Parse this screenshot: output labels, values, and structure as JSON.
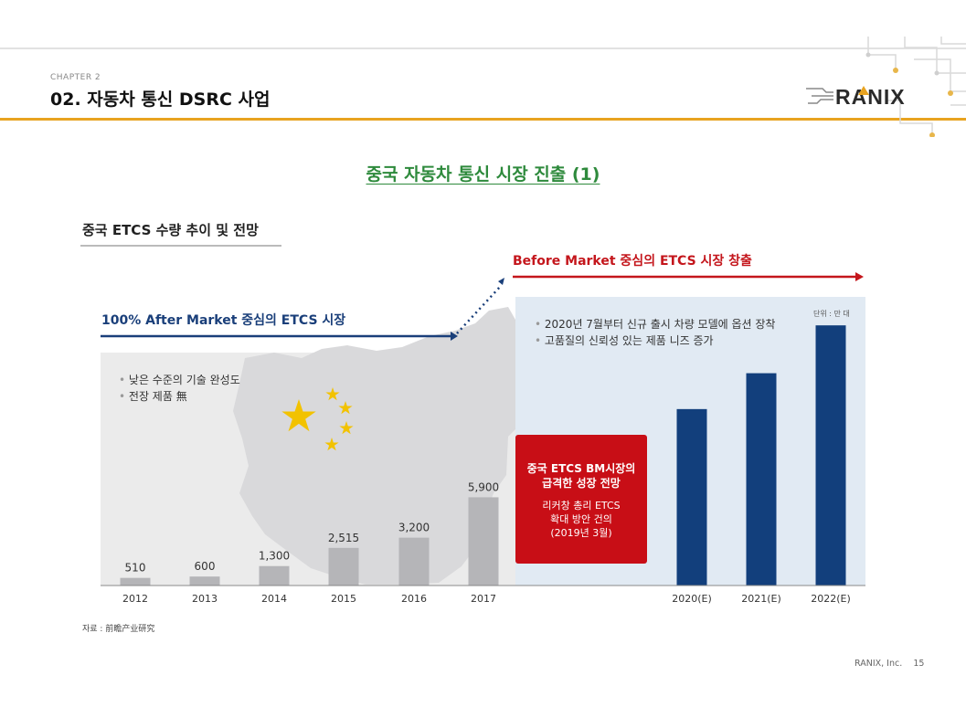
{
  "header": {
    "chapter": "CHAPTER 2",
    "section_title": "02. 자동차 통신 DSRC 사업",
    "logo_text": "RANIX",
    "accent_color": "#e8a320"
  },
  "page_heading": "중국 자동차 통신 시장 진출 (1)",
  "chart_heading": "중국 ETCS 수량 추이 및 전망",
  "labels": {
    "after_market": "100% After Market 중심의 ETCS 시장",
    "before_market": "Before Market 중심의 ETCS 시장 창출",
    "unit": "단위 : 만 대"
  },
  "left_bullets": [
    "낮은 수준의 기술 완성도",
    "전장 제품 無"
  ],
  "right_bullets": [
    "2020년 7월부터 신규 출시 차량 모델에 옵션 장착",
    "고품질의 신뢰성 있는 제품 니즈 증가"
  ],
  "callout": {
    "title_lines": [
      "중국 ETCS BM시장의",
      "급격한 성장 전망"
    ],
    "body_lines": [
      "리커창 총리 ETCS",
      "확대 방안 건의",
      "(2019년 3월)"
    ],
    "color": "#c80e16"
  },
  "chart_data": {
    "type": "bar",
    "categories": [
      "2012",
      "2013",
      "2014",
      "2015",
      "2016",
      "2017",
      "2020(E)",
      "2021(E)",
      "2022(E)"
    ],
    "series": [
      {
        "values": [
          510,
          600,
          1300,
          2515,
          3200,
          5900,
          null,
          null,
          null
        ],
        "color": "#b5b5b8"
      },
      {
        "values": [
          null,
          null,
          null,
          null,
          null,
          null,
          11800,
          14200,
          17400
        ],
        "color": "#123f7c"
      }
    ],
    "data_labels": [
      "510",
      "600",
      "1,300",
      "2,515",
      "3,200",
      "5,900",
      "",
      "",
      ""
    ],
    "ylim": [
      0,
      19000
    ],
    "grid": false
  },
  "source": "자료 : 前瞻产业研究",
  "footer": {
    "company": "RANIX, Inc.",
    "page": "15"
  }
}
